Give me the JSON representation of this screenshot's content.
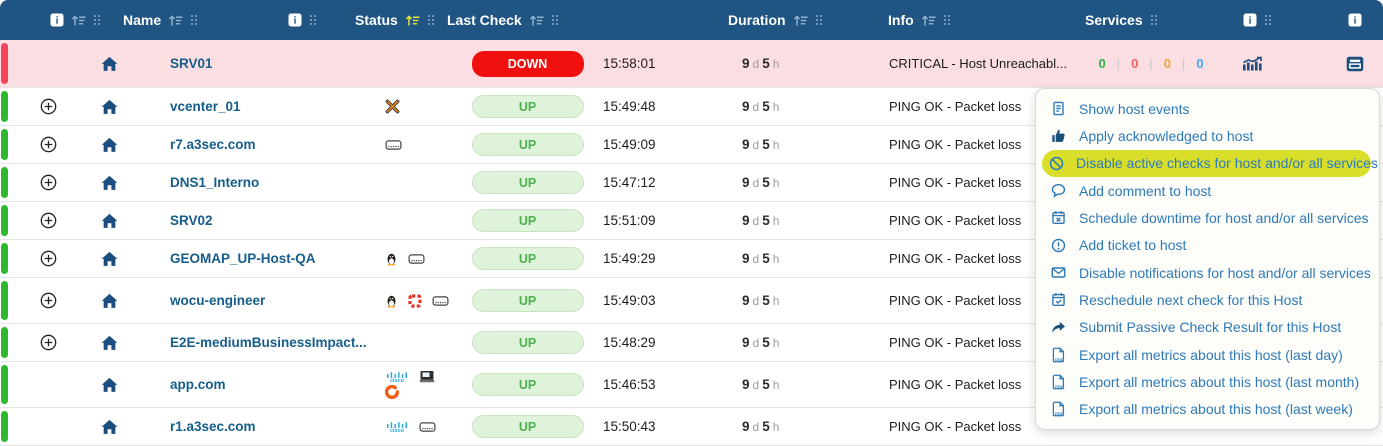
{
  "header": {
    "name": "Name",
    "status": "Status",
    "last_check": "Last Check",
    "duration": "Duration",
    "info": "Info",
    "services": "Services"
  },
  "rows": [
    {
      "name": "SRV01",
      "state": "down",
      "expandable": false,
      "tall": false,
      "os_icons": [],
      "status": "DOWN",
      "last_check": "15:58:01",
      "duration": {
        "value1": "9",
        "unit1": "d",
        "value2": "5",
        "unit2": "h"
      },
      "info": "CRITICAL - Host Unreachabl...",
      "services": {
        "ok": "0",
        "critical": "0",
        "warning": "0",
        "unknown": "0"
      },
      "actions": true
    },
    {
      "name": "vcenter_01",
      "state": "up",
      "expandable": true,
      "tall": false,
      "os_icons": [
        "vmware"
      ],
      "status": "UP",
      "last_check": "15:49:48",
      "duration": {
        "value1": "9",
        "unit1": "d",
        "value2": "5",
        "unit2": "h"
      },
      "info": "PING OK - Packet loss",
      "services": null,
      "actions": false
    },
    {
      "name": "r7.a3sec.com",
      "state": "up",
      "expandable": true,
      "tall": false,
      "os_icons": [
        "server"
      ],
      "status": "UP",
      "last_check": "15:49:09",
      "duration": {
        "value1": "9",
        "unit1": "d",
        "value2": "5",
        "unit2": "h"
      },
      "info": "PING OK - Packet loss",
      "services": null,
      "actions": false
    },
    {
      "name": "DNS1_Interno",
      "state": "up",
      "expandable": true,
      "tall": false,
      "os_icons": [],
      "status": "UP",
      "last_check": "15:47:12",
      "duration": {
        "value1": "9",
        "unit1": "d",
        "value2": "5",
        "unit2": "h"
      },
      "info": "PING OK - Packet loss",
      "services": null,
      "actions": false
    },
    {
      "name": "SRV02",
      "state": "up",
      "expandable": true,
      "tall": false,
      "os_icons": [],
      "status": "UP",
      "last_check": "15:51:09",
      "duration": {
        "value1": "9",
        "unit1": "d",
        "value2": "5",
        "unit2": "h"
      },
      "info": "PING OK - Packet loss",
      "services": null,
      "actions": false
    },
    {
      "name": "GEOMAP_UP-Host-QA",
      "state": "up",
      "expandable": true,
      "tall": false,
      "os_icons": [
        "linux",
        "server"
      ],
      "status": "UP",
      "last_check": "15:49:29",
      "duration": {
        "value1": "9",
        "unit1": "d",
        "value2": "5",
        "unit2": "h"
      },
      "info": "PING OK - Packet loss",
      "services": null,
      "actions": false
    },
    {
      "name": "wocu-engineer",
      "state": "up",
      "expandable": true,
      "tall": true,
      "os_icons": [
        "linux",
        "redgrid",
        "server"
      ],
      "status": "UP",
      "last_check": "15:49:03",
      "duration": {
        "value1": "9",
        "unit1": "d",
        "value2": "5",
        "unit2": "h"
      },
      "info": "PING OK - Packet loss",
      "services": null,
      "actions": false
    },
    {
      "name": "E2E-mediumBusinessImpact...",
      "state": "up",
      "expandable": true,
      "tall": false,
      "os_icons": [],
      "status": "UP",
      "last_check": "15:48:29",
      "duration": {
        "value1": "9",
        "unit1": "d",
        "value2": "5",
        "unit2": "h"
      },
      "info": "PING OK - Packet loss",
      "services": null,
      "actions": false
    },
    {
      "name": "app.com",
      "state": "up",
      "expandable": false,
      "tall": true,
      "os_icons": [
        "cisco",
        "device",
        "ring"
      ],
      "status": "UP",
      "last_check": "15:46:53",
      "duration": {
        "value1": "9",
        "unit1": "d",
        "value2": "5",
        "unit2": "h"
      },
      "info": "PING OK - Packet loss",
      "services": null,
      "actions": false
    },
    {
      "name": "r1.a3sec.com",
      "state": "up",
      "expandable": false,
      "tall": false,
      "os_icons": [
        "cisco",
        "server"
      ],
      "status": "UP",
      "last_check": "15:50:43",
      "duration": {
        "value1": "9",
        "unit1": "d",
        "value2": "5",
        "unit2": "h"
      },
      "info": "PING OK - Packet loss",
      "services": null,
      "actions": false
    }
  ],
  "menu": {
    "items": [
      {
        "icon": "events",
        "label": "Show host events",
        "highlighted": false
      },
      {
        "icon": "ack",
        "label": "Apply acknowledged to host",
        "highlighted": false
      },
      {
        "icon": "ban",
        "label": "Disable active checks for host and/or all services",
        "highlighted": true
      },
      {
        "icon": "comment",
        "label": "Add comment to host",
        "highlighted": false
      },
      {
        "icon": "downtime",
        "label": "Schedule downtime for host and/or all services",
        "highlighted": false
      },
      {
        "icon": "ticket",
        "label": "Add ticket to host",
        "highlighted": false
      },
      {
        "icon": "mail",
        "label": "Disable notifications for host and/or all services",
        "highlighted": false
      },
      {
        "icon": "reschedule",
        "label": "Reschedule next check for this Host",
        "highlighted": false
      },
      {
        "icon": "passive",
        "label": "Submit Passive Check Result for this Host",
        "highlighted": false
      },
      {
        "icon": "pdf",
        "label": "Export all metrics about this host (last day)",
        "highlighted": false
      },
      {
        "icon": "pdf",
        "label": "Export all metrics about this host (last month)",
        "highlighted": false
      },
      {
        "icon": "pdf",
        "label": "Export all metrics about this host (last week)",
        "highlighted": false
      }
    ]
  },
  "colors": {
    "header_bg": "#1f5483",
    "active_sort": "#e6e13a",
    "down_badge": "#f01010",
    "up_badge_bg": "#def3da",
    "up_badge_text": "#4db14d",
    "down_row_bg": "#fbdee2",
    "bar_red": "#f2455c",
    "bar_green": "#2eb82e",
    "menu_highlight": "#d9de2a",
    "menu_text": "#2e7ab8",
    "count_ok": "#33b249",
    "count_critical": "#f25f6d",
    "count_warning": "#f2a52f",
    "count_unknown": "#3fa9f5"
  }
}
